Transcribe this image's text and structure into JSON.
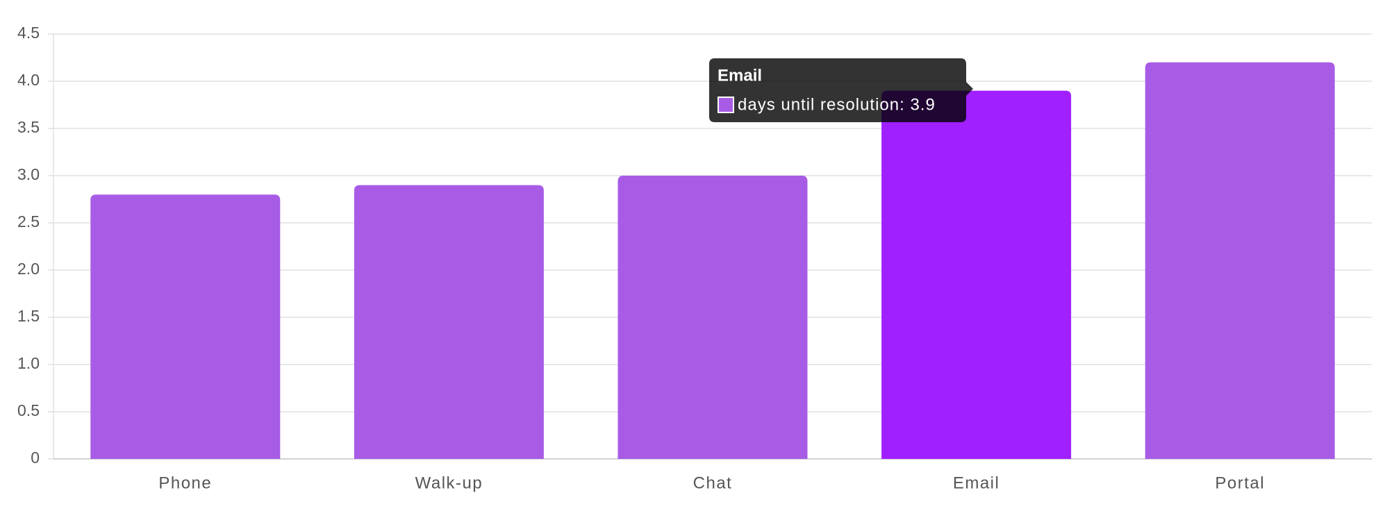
{
  "chart_data": {
    "type": "bar",
    "categories": [
      "Phone",
      "Walk-up",
      "Chat",
      "Email",
      "Portal"
    ],
    "series": [
      {
        "name": "days until resolution",
        "color": "#a85ce6",
        "values": [
          2.8,
          2.9,
          3.0,
          3.9,
          4.2
        ]
      }
    ],
    "highlight": {
      "index": 3,
      "color": "#a020ff"
    },
    "ylim": [
      0,
      4.5
    ],
    "yticks": [
      0,
      {
        "value": 0.5,
        "label": "0.5"
      },
      {
        "value": 1,
        "label": "1.0"
      },
      {
        "value": 1.5,
        "label": "1.5"
      },
      {
        "value": 2,
        "label": "2.0"
      },
      {
        "value": 2.5,
        "label": "2.5"
      },
      {
        "value": 3,
        "label": "3.0"
      },
      {
        "value": 3.5,
        "label": "3.5"
      },
      {
        "value": 4,
        "label": "4.0"
      },
      {
        "value": 4.5,
        "label": "4.5"
      }
    ],
    "grid": true,
    "tooltip": {
      "title": "Email",
      "text": "days until resolution: 3.9"
    }
  }
}
